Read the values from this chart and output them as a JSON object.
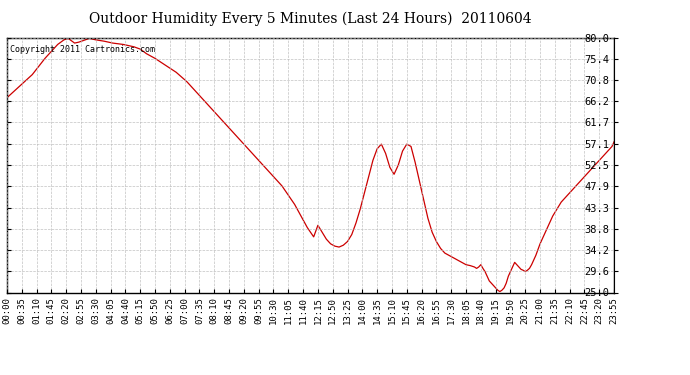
{
  "title": "Outdoor Humidity Every 5 Minutes (Last 24 Hours)  20110604",
  "copyright_text": "Copyright 2011 Cartronics.com",
  "line_color": "#cc0000",
  "background_color": "#ffffff",
  "grid_color": "#bbbbbb",
  "yticks": [
    25.0,
    29.6,
    34.2,
    38.8,
    43.3,
    47.9,
    52.5,
    57.1,
    61.7,
    66.2,
    70.8,
    75.4,
    80.0
  ],
  "ylim": [
    25.0,
    80.0
  ],
  "keypoints": [
    [
      0,
      67.0
    ],
    [
      6,
      69.5
    ],
    [
      12,
      72.0
    ],
    [
      18,
      75.5
    ],
    [
      24,
      78.5
    ],
    [
      27,
      79.5
    ],
    [
      29,
      79.8
    ],
    [
      32,
      78.8
    ],
    [
      34,
      79.0
    ],
    [
      37,
      79.5
    ],
    [
      39,
      79.8
    ],
    [
      42,
      79.5
    ],
    [
      46,
      79.2
    ],
    [
      50,
      78.8
    ],
    [
      55,
      78.5
    ],
    [
      60,
      78.0
    ],
    [
      63,
      77.5
    ],
    [
      66,
      76.5
    ],
    [
      70,
      75.5
    ],
    [
      75,
      74.0
    ],
    [
      80,
      72.5
    ],
    [
      85,
      70.5
    ],
    [
      90,
      68.0
    ],
    [
      95,
      65.5
    ],
    [
      100,
      63.0
    ],
    [
      105,
      60.5
    ],
    [
      110,
      58.0
    ],
    [
      115,
      55.5
    ],
    [
      120,
      53.0
    ],
    [
      125,
      50.5
    ],
    [
      130,
      48.0
    ],
    [
      133,
      46.0
    ],
    [
      136,
      44.0
    ],
    [
      139,
      41.5
    ],
    [
      142,
      39.0
    ],
    [
      145,
      37.0
    ],
    [
      147,
      39.5
    ],
    [
      149,
      38.0
    ],
    [
      151,
      36.5
    ],
    [
      153,
      35.5
    ],
    [
      155,
      35.0
    ],
    [
      157,
      34.8
    ],
    [
      159,
      35.2
    ],
    [
      161,
      36.0
    ],
    [
      163,
      37.5
    ],
    [
      165,
      40.0
    ],
    [
      167,
      43.0
    ],
    [
      169,
      46.5
    ],
    [
      171,
      50.0
    ],
    [
      173,
      53.5
    ],
    [
      175,
      56.0
    ],
    [
      177,
      57.0
    ],
    [
      179,
      55.0
    ],
    [
      181,
      52.0
    ],
    [
      183,
      50.5
    ],
    [
      185,
      52.5
    ],
    [
      187,
      55.5
    ],
    [
      189,
      57.0
    ],
    [
      191,
      56.5
    ],
    [
      193,
      53.0
    ],
    [
      195,
      49.0
    ],
    [
      197,
      45.0
    ],
    [
      199,
      41.0
    ],
    [
      201,
      38.0
    ],
    [
      203,
      36.0
    ],
    [
      205,
      34.5
    ],
    [
      207,
      33.5
    ],
    [
      209,
      33.0
    ],
    [
      211,
      32.5
    ],
    [
      213,
      32.0
    ],
    [
      215,
      31.5
    ],
    [
      217,
      31.0
    ],
    [
      219,
      30.8
    ],
    [
      221,
      30.5
    ],
    [
      222,
      30.2
    ],
    [
      223,
      30.5
    ],
    [
      224,
      31.0
    ],
    [
      225,
      30.2
    ],
    [
      226,
      29.5
    ],
    [
      227,
      28.5
    ],
    [
      228,
      27.5
    ],
    [
      229,
      27.0
    ],
    [
      230,
      26.5
    ],
    [
      231,
      26.0
    ],
    [
      232,
      25.5
    ],
    [
      233,
      25.2
    ],
    [
      234,
      25.5
    ],
    [
      235,
      26.0
    ],
    [
      236,
      27.0
    ],
    [
      237,
      28.5
    ],
    [
      238,
      29.5
    ],
    [
      239,
      30.5
    ],
    [
      240,
      31.5
    ],
    [
      241,
      31.0
    ],
    [
      242,
      30.5
    ],
    [
      243,
      30.0
    ],
    [
      244,
      29.8
    ],
    [
      245,
      29.5
    ],
    [
      246,
      29.8
    ],
    [
      247,
      30.2
    ],
    [
      248,
      31.0
    ],
    [
      250,
      33.0
    ],
    [
      252,
      35.5
    ],
    [
      254,
      37.5
    ],
    [
      256,
      39.5
    ],
    [
      258,
      41.5
    ],
    [
      260,
      43.0
    ],
    [
      262,
      44.5
    ],
    [
      264,
      45.5
    ],
    [
      266,
      46.5
    ],
    [
      268,
      47.5
    ],
    [
      270,
      48.5
    ],
    [
      272,
      49.5
    ],
    [
      274,
      50.5
    ],
    [
      276,
      51.5
    ],
    [
      278,
      52.5
    ],
    [
      280,
      53.5
    ],
    [
      282,
      54.5
    ],
    [
      284,
      55.5
    ],
    [
      286,
      56.5
    ],
    [
      287,
      57.5
    ]
  ]
}
